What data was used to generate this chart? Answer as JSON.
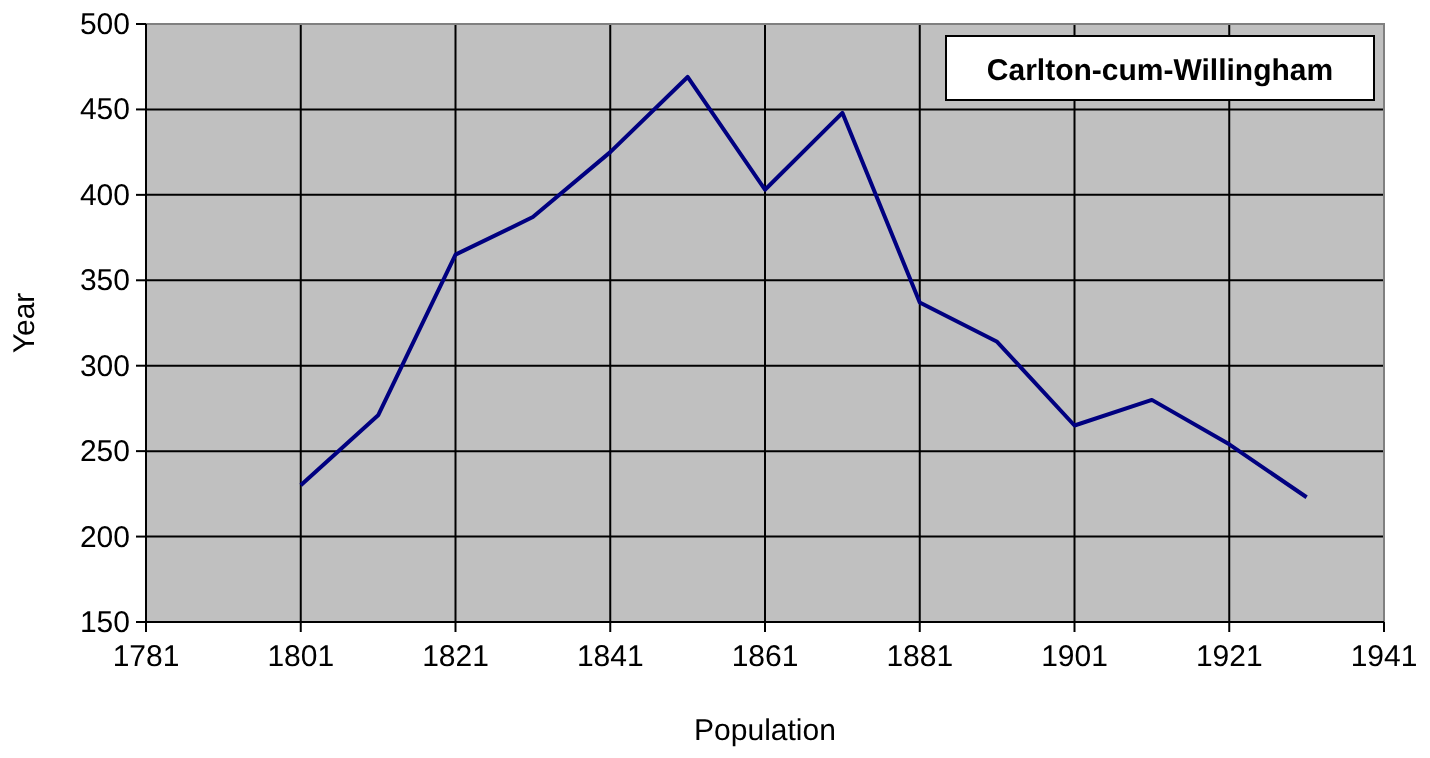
{
  "chart_data": {
    "type": "line",
    "title": "Carlton-cum-Willingham",
    "xlabel": "Population",
    "ylabel": "Year",
    "x": [
      1801,
      1811,
      1821,
      1831,
      1841,
      1851,
      1861,
      1871,
      1881,
      1891,
      1901,
      1911,
      1921,
      1931
    ],
    "series": [
      {
        "color": "#000080",
        "values": [
          230,
          271,
          365,
          387,
          425,
          469,
          403,
          448,
          337,
          314,
          265,
          280,
          254,
          223
        ]
      }
    ],
    "xlim": [
      1781,
      1941
    ],
    "xticks": [
      1781,
      1801,
      1821,
      1841,
      1861,
      1881,
      1901,
      1921,
      1941
    ],
    "ylim": [
      150,
      500
    ],
    "yticks": [
      150,
      200,
      250,
      300,
      350,
      400,
      450,
      500
    ],
    "grid": true,
    "marker": "none",
    "line_style": "solid"
  }
}
